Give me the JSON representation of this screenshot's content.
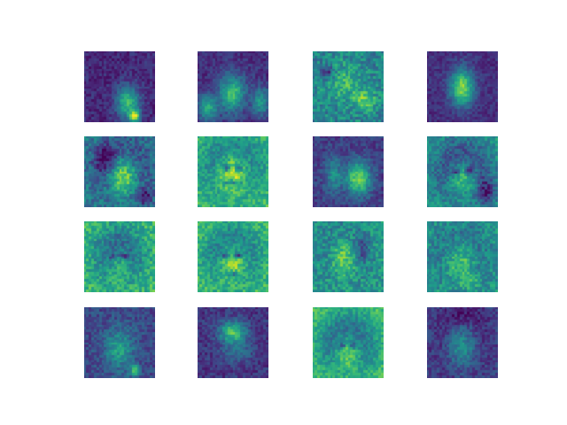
{
  "figure": {
    "description_free": true,
    "grid": {
      "rows": 4,
      "cols": 4
    },
    "colormap": {
      "name": "viridis",
      "stops": [
        "#440154",
        "#482878",
        "#3e4989",
        "#31688e",
        "#26828e",
        "#1f9e89",
        "#35b779",
        "#6ece58",
        "#b5de2b",
        "#fde725"
      ]
    },
    "tiles": [
      {
        "id": "tile-1",
        "theme": "dark-face-small"
      },
      {
        "id": "tile-2",
        "theme": "dark-head-shoulders"
      },
      {
        "id": "tile-3",
        "theme": "mixed-noise-face"
      },
      {
        "id": "tile-4",
        "theme": "dark-bright-center"
      },
      {
        "id": "tile-5",
        "theme": "green-side-face"
      },
      {
        "id": "tile-6",
        "theme": "bright-smiling-face"
      },
      {
        "id": "tile-7",
        "theme": "dark-tilted-face"
      },
      {
        "id": "tile-8",
        "theme": "yellow-dark-hair-face"
      },
      {
        "id": "tile-9",
        "theme": "yellow-hair-frame"
      },
      {
        "id": "tile-10",
        "theme": "bright-face-dark-hair"
      },
      {
        "id": "tile-11",
        "theme": "green-face-bright"
      },
      {
        "id": "tile-12",
        "theme": "green-face-soft"
      },
      {
        "id": "tile-13",
        "theme": "dark-blur-face"
      },
      {
        "id": "tile-14",
        "theme": "dark-bright-blob"
      },
      {
        "id": "tile-15",
        "theme": "yellow-dark-arch"
      },
      {
        "id": "tile-16",
        "theme": "dark-face-frame"
      }
    ]
  }
}
